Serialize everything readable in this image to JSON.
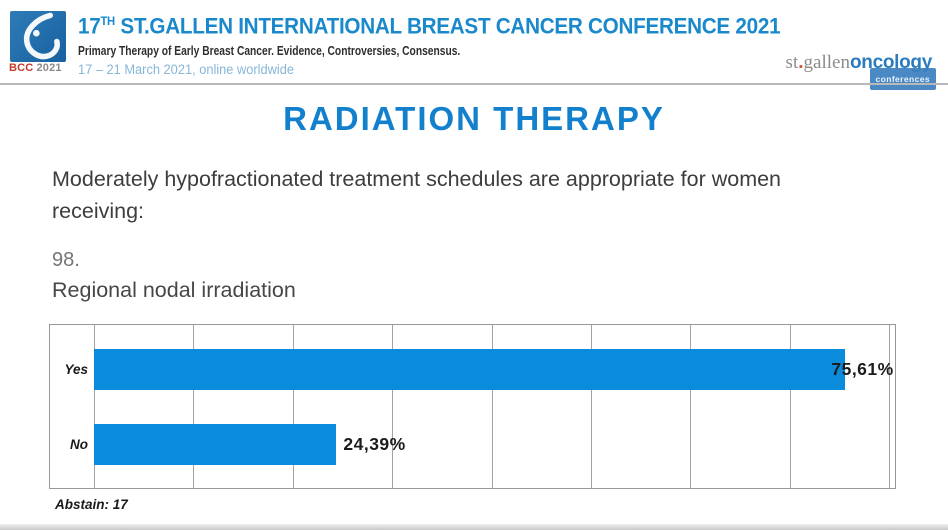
{
  "header": {
    "logo_badge": "BCC",
    "logo_year": "2021",
    "title_num": "17",
    "title_sup": "TH",
    "title_rest": " ST.GALLEN INTERNATIONAL BREAST CANCER CONFERENCE 2021",
    "subtitle": "Primary Therapy of Early Breast Cancer. Evidence, Controversies, Consensus.",
    "dates": "17 – 21 March 2021, online worldwide",
    "right_logo_part1": "st",
    "right_logo_dot": ".",
    "right_logo_part2": "gallen",
    "right_logo_part3": "oncology",
    "right_logo_badge": "conferences"
  },
  "main": {
    "section_title": "RADIATION THERAPY",
    "question": "Moderately hypofractionated treatment schedules are appropriate for women receiving:",
    "question_number": "98.",
    "question_item": "Regional nodal irradiation",
    "abstain": "Abstain: 17"
  },
  "chart_data": {
    "type": "bar",
    "orientation": "horizontal",
    "categories": [
      "Yes",
      "No"
    ],
    "values": [
      75.61,
      24.39
    ],
    "value_labels": [
      "75,61%",
      "24,39%"
    ],
    "xlim": [
      0,
      80
    ],
    "gridline_step": 10,
    "grid": true,
    "legend": false,
    "bar_color": "#0a8bdb"
  },
  "colors": {
    "header_title_blue": "#1989cb",
    "section_title_blue": "#1280cc",
    "bar_blue": "#0a8bdb",
    "dates_light_blue": "#86b7d8",
    "bcc_red": "#c23b2a",
    "badge_blue": "#3c80c0"
  }
}
